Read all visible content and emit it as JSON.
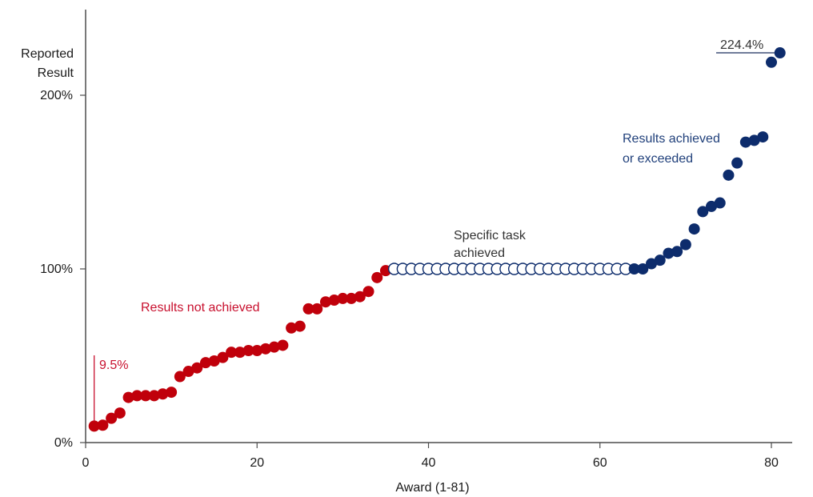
{
  "chart_data": {
    "type": "scatter",
    "title": "",
    "xlabel": "Award (1-81)",
    "ylabel": "Reported Result",
    "ylabel_lines": [
      "Reported",
      "Result"
    ],
    "xlim": [
      0,
      83
    ],
    "ylim": [
      0,
      250
    ],
    "xticks": [
      0,
      20,
      40,
      60,
      80
    ],
    "xtick_labels": [
      "0",
      "20",
      "40",
      "60",
      "80"
    ],
    "yticks": [
      0,
      100,
      200
    ],
    "ytick_labels": [
      "0%",
      "100%",
      "200%"
    ],
    "grid": false,
    "legend": "none",
    "colors": {
      "not_achieved": "#c0000b",
      "task_achieved_stroke": "#0d2c6c",
      "achieved": "#0d2c6c",
      "red_text": "#c8102e",
      "navy_text": "#1f3f7a",
      "dark_text": "#333333",
      "axis": "#4d4d4d"
    },
    "series": [
      {
        "group": "not_achieved",
        "style": "filled",
        "color": "#c0000b",
        "points": [
          [
            1,
            9.5
          ],
          [
            2,
            10
          ],
          [
            3,
            14
          ],
          [
            4,
            17
          ],
          [
            5,
            26
          ],
          [
            6,
            27
          ],
          [
            7,
            27
          ],
          [
            8,
            27
          ],
          [
            9,
            28
          ],
          [
            10,
            29
          ],
          [
            11,
            38
          ],
          [
            12,
            41
          ],
          [
            13,
            43
          ],
          [
            14,
            46
          ],
          [
            15,
            47
          ],
          [
            16,
            49
          ],
          [
            17,
            52
          ],
          [
            18,
            52
          ],
          [
            19,
            53
          ],
          [
            20,
            53
          ],
          [
            21,
            54
          ],
          [
            22,
            55
          ],
          [
            23,
            56
          ],
          [
            24,
            66
          ],
          [
            25,
            67
          ],
          [
            26,
            77
          ],
          [
            27,
            77
          ],
          [
            28,
            81
          ],
          [
            29,
            82
          ],
          [
            30,
            83
          ],
          [
            31,
            83
          ],
          [
            32,
            84
          ],
          [
            33,
            87
          ],
          [
            34,
            95
          ],
          [
            35,
            99
          ]
        ]
      },
      {
        "group": "task_achieved",
        "style": "hollow",
        "color": "#0d2c6c",
        "points": [
          [
            36,
            100
          ],
          [
            37,
            100
          ],
          [
            38,
            100
          ],
          [
            39,
            100
          ],
          [
            40,
            100
          ],
          [
            41,
            100
          ],
          [
            42,
            100
          ],
          [
            43,
            100
          ],
          [
            44,
            100
          ],
          [
            45,
            100
          ],
          [
            46,
            100
          ],
          [
            47,
            100
          ],
          [
            48,
            100
          ],
          [
            49,
            100
          ],
          [
            50,
            100
          ],
          [
            51,
            100
          ],
          [
            52,
            100
          ],
          [
            53,
            100
          ],
          [
            54,
            100
          ],
          [
            55,
            100
          ],
          [
            56,
            100
          ],
          [
            57,
            100
          ],
          [
            58,
            100
          ],
          [
            59,
            100
          ],
          [
            60,
            100
          ],
          [
            61,
            100
          ],
          [
            62,
            100
          ],
          [
            63,
            100
          ]
        ]
      },
      {
        "group": "achieved",
        "style": "filled",
        "color": "#0d2c6c",
        "points": [
          [
            64,
            100
          ],
          [
            65,
            100
          ],
          [
            66,
            103
          ],
          [
            67,
            105
          ],
          [
            68,
            109
          ],
          [
            69,
            110
          ],
          [
            70,
            114
          ],
          [
            71,
            123
          ],
          [
            72,
            133
          ],
          [
            73,
            136
          ],
          [
            74,
            138
          ],
          [
            75,
            154
          ],
          [
            76,
            161
          ],
          [
            77,
            173
          ],
          [
            78,
            174
          ],
          [
            79,
            176
          ],
          [
            80,
            219
          ],
          [
            81,
            224.4
          ]
        ]
      }
    ],
    "annotations": [
      {
        "id": "min-label",
        "text": "9.5%",
        "color": "#c8102e"
      },
      {
        "id": "max-label",
        "text": "224.4%",
        "color": "#333333"
      },
      {
        "id": "not-achieved-label",
        "lines": [
          "Results not achieved"
        ],
        "color": "#c8102e"
      },
      {
        "id": "task-label",
        "lines": [
          "Specific task",
          "achieved"
        ],
        "color": "#333333"
      },
      {
        "id": "achieved-label",
        "lines": [
          "Results achieved",
          "or exceeded"
        ],
        "color": "#1f3f7a"
      }
    ]
  }
}
